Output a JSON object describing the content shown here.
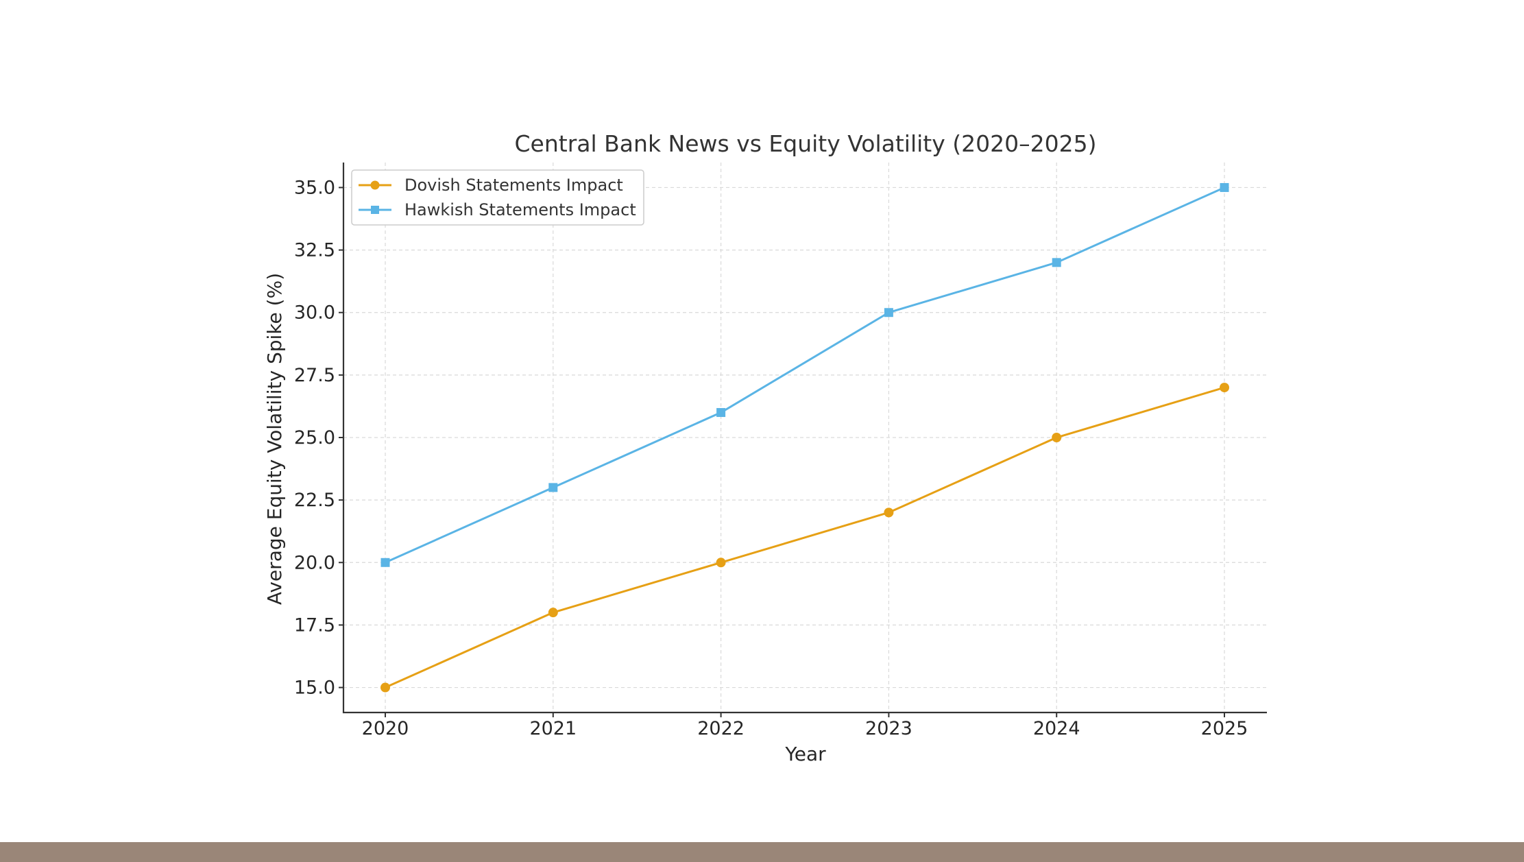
{
  "chart_data": {
    "type": "line",
    "title": "Central Bank News vs Equity Volatility (2020–2025)",
    "xlabel": "Year",
    "ylabel": "Average Equity Volatility Spike (%)",
    "categories": [
      "2020",
      "2021",
      "2022",
      "2023",
      "2024",
      "2025"
    ],
    "ylim": [
      14.0,
      36.0
    ],
    "yticks": [
      "15.0",
      "17.5",
      "20.0",
      "22.5",
      "25.0",
      "27.5",
      "30.0",
      "32.5",
      "35.0"
    ],
    "grid": true,
    "legend_position": "top-left",
    "series": [
      {
        "name": "Dovish Statements Impact",
        "values": [
          15,
          18,
          20,
          22,
          25,
          27
        ],
        "color": "#e6a015",
        "marker": "circle"
      },
      {
        "name": "Hawkish Statements Impact",
        "values": [
          20,
          23,
          26,
          30,
          32,
          35
        ],
        "color": "#5ab4e5",
        "marker": "square"
      }
    ]
  },
  "footer": {
    "bar_color": "#9a8678"
  }
}
